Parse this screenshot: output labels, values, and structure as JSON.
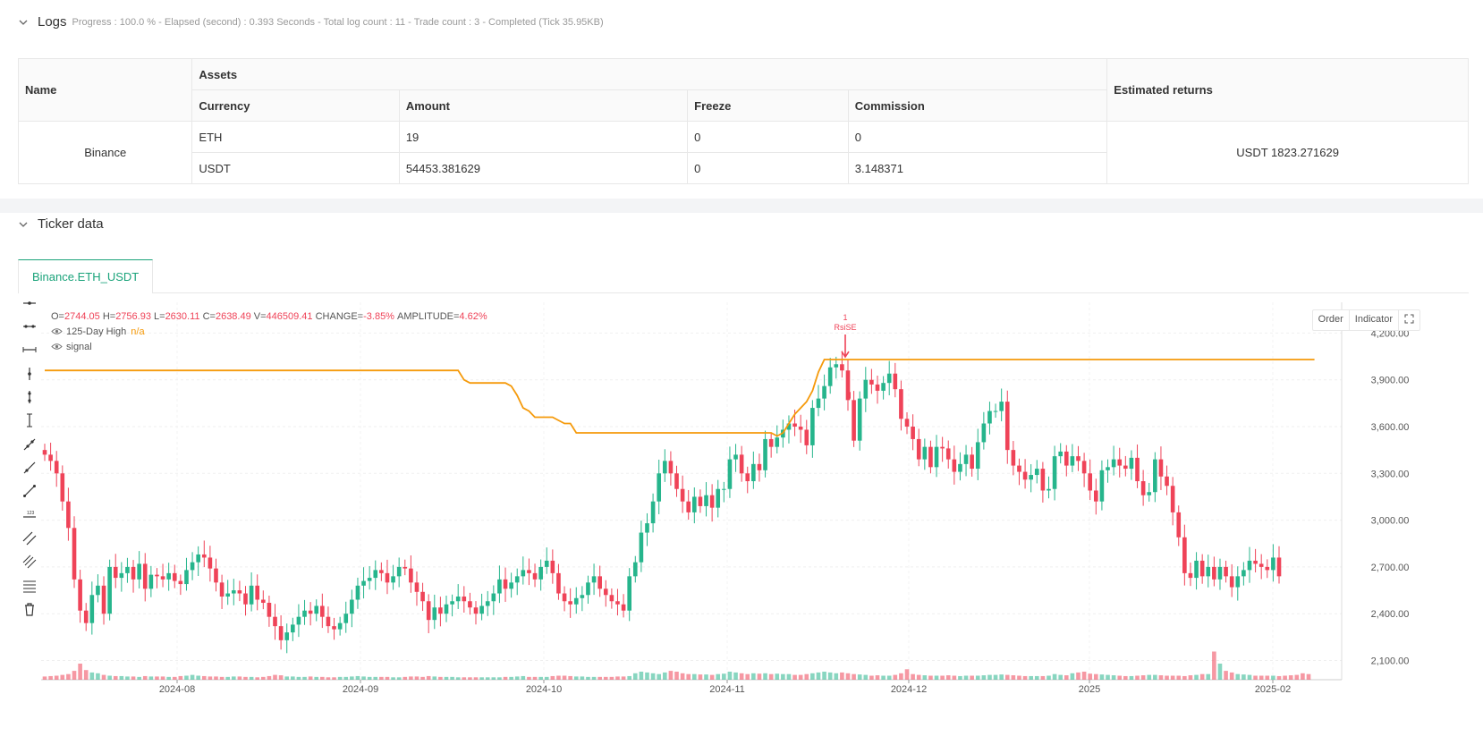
{
  "logs": {
    "title": "Logs",
    "info": "Progress : 100.0 % - Elapsed (second) : 0.393  Seconds - Total log count : 11 - Trade count : 3 - Completed (Tick 35.95KB)"
  },
  "assets_table": {
    "headers": {
      "name": "Name",
      "assets": "Assets",
      "returns": "Estimated returns",
      "currency": "Currency",
      "amount": "Amount",
      "freeze": "Freeze",
      "commission": "Commission"
    },
    "exchange": "Binance",
    "rows": [
      {
        "currency": "ETH",
        "amount": "19",
        "freeze": "0",
        "commission": "0"
      },
      {
        "currency": "USDT",
        "amount": "54453.381629",
        "freeze": "0",
        "commission": "3.148371"
      }
    ],
    "estimated_returns": "USDT 1823.271629"
  },
  "ticker": {
    "title": "Ticker data",
    "tab": "Binance.ETH_USDT",
    "buttons": {
      "order": "Order",
      "indicator": "Indicator"
    }
  },
  "legend": {
    "o_label": "O=",
    "o": "2744.05",
    "h_label": "H=",
    "h": "2756.93",
    "l_label": "L=",
    "l": "2630.11",
    "c_label": "C=",
    "c": "2638.49",
    "v_label": "V=",
    "v": "446509.41",
    "change_label": "CHANGE=",
    "change": "-3.85%",
    "amp_label": "AMPLITUDE=",
    "amp": "4.62%",
    "series1": "125-Day High",
    "series1_value": "n/a",
    "series2": "signal"
  },
  "colors": {
    "up": "#26b58c",
    "down": "#ef4358",
    "line": "#f59a0b",
    "accent": "#1aa37a"
  },
  "chart_data": {
    "type": "candlestick",
    "y_ticks": [
      2100,
      2400,
      2700,
      3000,
      3300,
      3600,
      3900,
      4200
    ],
    "y_tick_labels": [
      "2,100.00",
      "2,400.00",
      "2,700.00",
      "3,000.00",
      "3,300.00",
      "3,600.00",
      "3,900.00",
      "4,200.00"
    ],
    "x_tick_labels": [
      "2024-08",
      "2024-09",
      "2024-10",
      "2024-11",
      "2024-12",
      "2025",
      "2025-02"
    ],
    "annotation": {
      "count": "1",
      "label": "RsiSE"
    },
    "closes": [
      3420,
      3380,
      3300,
      3120,
      2950,
      2620,
      2420,
      2340,
      2520,
      2580,
      2400,
      2700,
      2630,
      2660,
      2700,
      2620,
      2720,
      2560,
      2650,
      2640,
      2620,
      2660,
      2610,
      2590,
      2680,
      2730,
      2780,
      2760,
      2690,
      2600,
      2510,
      2530,
      2550,
      2530,
      2460,
      2580,
      2490,
      2470,
      2380,
      2320,
      2230,
      2280,
      2330,
      2380,
      2420,
      2400,
      2450,
      2380,
      2320,
      2300,
      2340,
      2400,
      2490,
      2580,
      2610,
      2630,
      2680,
      2660,
      2600,
      2640,
      2700,
      2690,
      2600,
      2540,
      2480,
      2360,
      2440,
      2400,
      2460,
      2480,
      2510,
      2480,
      2440,
      2400,
      2450,
      2480,
      2530,
      2620,
      2560,
      2600,
      2640,
      2680,
      2660,
      2620,
      2700,
      2740,
      2660,
      2530,
      2480,
      2460,
      2500,
      2520,
      2600,
      2640,
      2560,
      2520,
      2480,
      2460,
      2420,
      2640,
      2730,
      2920,
      2980,
      3120,
      3300,
      3380,
      3300,
      3200,
      3120,
      3050,
      3150,
      3090,
      3160,
      3080,
      3200,
      3200,
      3390,
      3420,
      3300,
      3250,
      3360,
      3320,
      3520,
      3470,
      3530,
      3580,
      3620,
      3600,
      3580,
      3480,
      3720,
      3780,
      3860,
      3980,
      4000,
      3960,
      3770,
      3510,
      3780,
      3900,
      3870,
      3830,
      3880,
      3940,
      3840,
      3650,
      3600,
      3520,
      3390,
      3470,
      3340,
      3470,
      3460,
      3390,
      3310,
      3360,
      3420,
      3330,
      3500,
      3620,
      3700,
      3700,
      3760,
      3450,
      3350,
      3310,
      3260,
      3290,
      3330,
      3190,
      3200,
      3410,
      3440,
      3350,
      3410,
      3380,
      3300,
      3190,
      3120,
      3320,
      3340,
      3390,
      3350,
      3330,
      3400,
      3250,
      3160,
      3180,
      3390,
      3280,
      3220,
      3050,
      2890,
      2660,
      2630,
      2740,
      2640,
      2700,
      2620,
      2700,
      2640,
      2570,
      2640,
      2680,
      2740,
      2720,
      2700,
      2680,
      2760,
      2640
    ],
    "line_125d_high": [
      3960,
      3960,
      3960,
      3960,
      3960,
      3960,
      3960,
      3960,
      3960,
      3960,
      3960,
      3960,
      3960,
      3960,
      3960,
      3960,
      3960,
      3960,
      3960,
      3960,
      3960,
      3960,
      3960,
      3960,
      3960,
      3960,
      3960,
      3960,
      3960,
      3960,
      3960,
      3960,
      3960,
      3960,
      3960,
      3960,
      3960,
      3960,
      3960,
      3960,
      3960,
      3960,
      3960,
      3960,
      3960,
      3960,
      3960,
      3960,
      3960,
      3960,
      3960,
      3960,
      3960,
      3960,
      3960,
      3960,
      3960,
      3960,
      3960,
      3960,
      3960,
      3960,
      3960,
      3960,
      3960,
      3960,
      3960,
      3960,
      3960,
      3960,
      3960,
      3900,
      3880,
      3880,
      3880,
      3880,
      3880,
      3880,
      3880,
      3860,
      3800,
      3720,
      3700,
      3660,
      3660,
      3660,
      3660,
      3640,
      3620,
      3620,
      3560,
      3560,
      3560,
      3560,
      3560,
      3560,
      3560,
      3560,
      3560,
      3560,
      3560,
      3560,
      3560,
      3560,
      3560,
      3560,
      3560,
      3560,
      3560,
      3560,
      3560,
      3560,
      3560,
      3560,
      3560,
      3560,
      3560,
      3560,
      3560,
      3560,
      3560,
      3560,
      3560,
      3560,
      3540,
      3560,
      3620,
      3680,
      3720,
      3760,
      3830,
      3950,
      4030,
      4030,
      4030,
      4030,
      4030,
      4030,
      4030,
      4030,
      4030,
      4030,
      4030,
      4030,
      4030,
      4030,
      4030,
      4030,
      4030,
      4030,
      4030,
      4030,
      4030,
      4030,
      4030,
      4030,
      4030,
      4030,
      4030,
      4030,
      4030,
      4030,
      4030,
      4030,
      4030,
      4030,
      4030,
      4030,
      4030,
      4030,
      4030,
      4030,
      4030,
      4030,
      4030,
      4030,
      4030,
      4030,
      4030,
      4030,
      4030,
      4030,
      4030,
      4030,
      4030,
      4030,
      4030,
      4030,
      4030,
      4030,
      4030,
      4030,
      4030,
      4030,
      4030,
      4030,
      4030,
      4030,
      4030,
      4030,
      4030,
      4030,
      4030,
      4030,
      4030,
      4030,
      4030,
      4030,
      4030,
      4030,
      4030,
      4030,
      4030,
      4030,
      4030,
      4030
    ],
    "volumes": [
      8,
      9,
      10,
      12,
      14,
      22,
      40,
      24,
      18,
      16,
      12,
      10,
      9,
      9,
      8,
      8,
      7,
      9,
      8,
      8,
      8,
      7,
      7,
      9,
      10,
      12,
      10,
      9,
      8,
      8,
      7,
      7,
      8,
      8,
      7,
      7,
      6,
      7,
      9,
      12,
      11,
      8,
      8,
      7,
      7,
      8,
      7,
      7,
      6,
      6,
      7,
      7,
      8,
      9,
      8,
      7,
      7,
      7,
      7,
      6,
      6,
      7,
      8,
      8,
      7,
      9,
      8,
      7,
      7,
      7,
      6,
      6,
      6,
      6,
      6,
      6,
      6,
      6,
      7,
      7,
      8,
      9,
      7,
      7,
      7,
      7,
      9,
      10,
      10,
      9,
      8,
      8,
      7,
      7,
      7,
      7,
      7,
      8,
      8,
      9,
      16,
      20,
      18,
      16,
      14,
      18,
      22,
      20,
      16,
      14,
      14,
      13,
      13,
      12,
      14,
      15,
      20,
      18,
      16,
      14,
      16,
      15,
      16,
      14,
      15,
      14,
      14,
      12,
      12,
      14,
      16,
      18,
      20,
      18,
      16,
      18,
      16,
      14,
      13,
      12,
      10,
      11,
      10,
      10,
      12,
      16,
      26,
      14,
      12,
      11,
      10,
      10,
      10,
      11,
      10,
      9,
      10,
      10,
      10,
      11,
      12,
      12,
      13,
      12,
      11,
      10,
      9,
      9,
      9,
      9,
      10,
      14,
      12,
      11,
      16,
      18,
      20,
      15,
      14,
      13,
      12,
      11,
      10,
      9,
      9,
      10,
      11,
      12,
      12,
      11,
      10,
      10,
      10,
      9,
      11,
      12,
      14,
      14,
      70,
      40,
      22,
      18,
      14,
      13,
      12,
      10,
      10,
      10,
      10,
      9,
      10,
      11,
      12,
      16,
      14
    ]
  }
}
